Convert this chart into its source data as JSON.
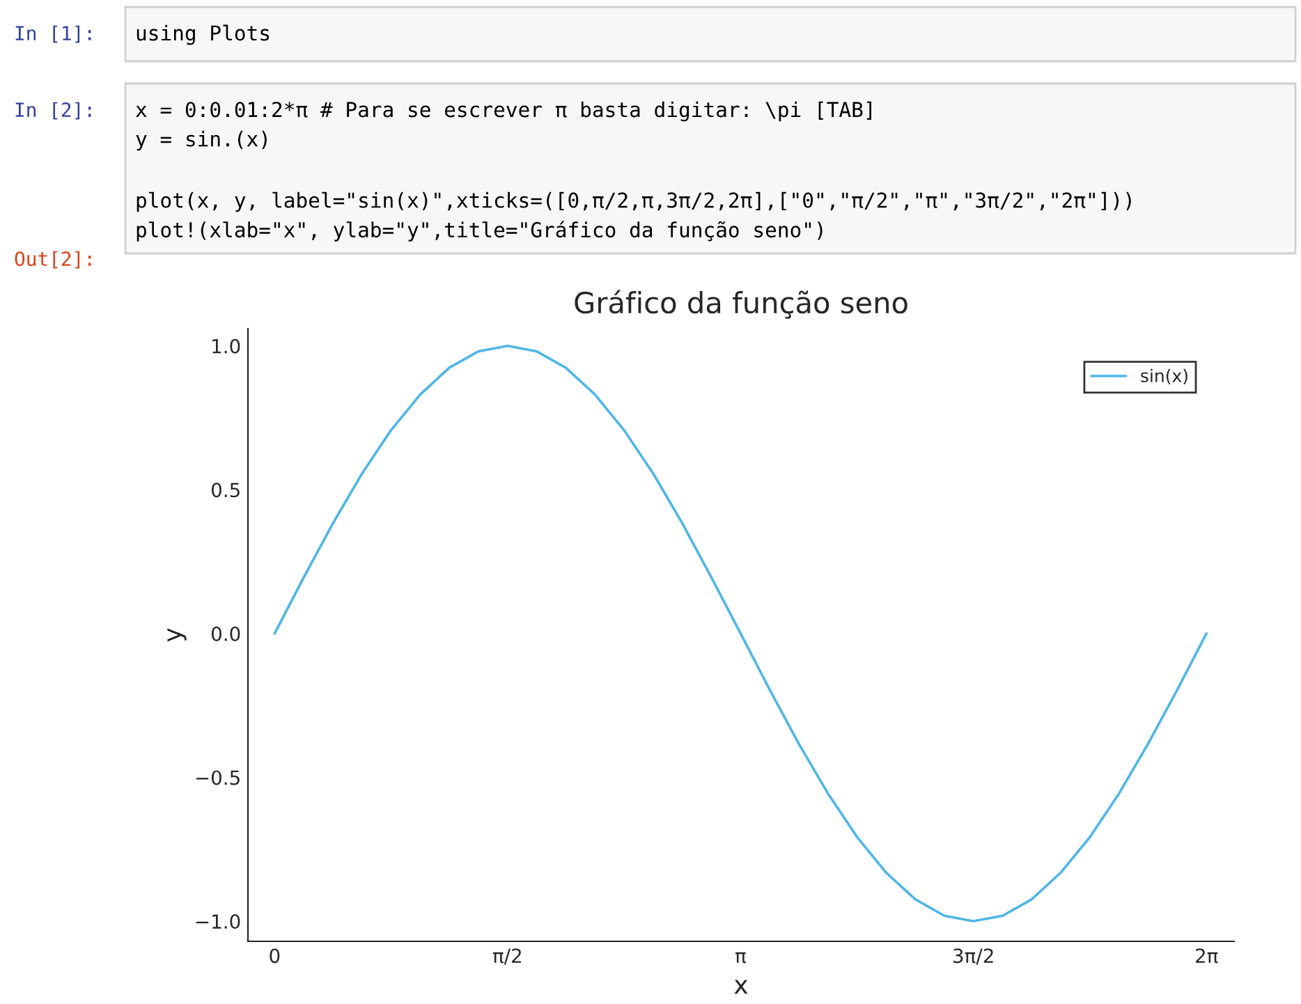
{
  "chart_data": {
    "type": "line",
    "title": "Gráfico da função seno",
    "xlabel": "x",
    "ylabel": "y",
    "x": [
      0,
      0.196,
      0.393,
      0.589,
      0.785,
      0.982,
      1.178,
      1.374,
      1.571,
      1.767,
      1.963,
      2.16,
      2.356,
      2.553,
      2.749,
      2.945,
      3.142,
      3.338,
      3.534,
      3.731,
      3.927,
      4.123,
      4.32,
      4.516,
      4.712,
      4.909,
      5.105,
      5.301,
      5.498,
      5.694,
      5.89,
      6.087,
      6.283
    ],
    "series": [
      {
        "name": "sin(x)",
        "color": "#4fb6e6",
        "values": [
          0,
          0.195,
          0.383,
          0.556,
          0.707,
          0.831,
          0.924,
          0.981,
          1.0,
          0.981,
          0.924,
          0.831,
          0.707,
          0.556,
          0.383,
          0.195,
          0,
          -0.195,
          -0.383,
          -0.556,
          -0.707,
          -0.831,
          -0.924,
          -0.981,
          -1.0,
          -0.981,
          -0.924,
          -0.831,
          -0.707,
          -0.556,
          -0.383,
          -0.195,
          0
        ]
      }
    ],
    "xlim": [
      -0.18,
      6.47
    ],
    "ylim": [
      -1.07,
      1.06
    ],
    "xticks": [
      {
        "value": 0,
        "label": "0"
      },
      {
        "value": 1.571,
        "label": "π/2"
      },
      {
        "value": 3.142,
        "label": "π"
      },
      {
        "value": 4.712,
        "label": "3π/2"
      },
      {
        "value": 6.283,
        "label": "2π"
      }
    ],
    "yticks": [
      {
        "value": -1,
        "label": "−1.0"
      },
      {
        "value": -0.5,
        "label": "−0.5"
      },
      {
        "value": 0,
        "label": "0.0"
      },
      {
        "value": 0.5,
        "label": "0.5"
      },
      {
        "value": 1,
        "label": "1.0"
      }
    ],
    "grid": false,
    "legend": "top right",
    "marker": "none",
    "line_style": "solid",
    "annotations": [
      "In [1]:",
      "using Plots",
      "In [2]:",
      "x = 0:0.01:2*π # Para se escrever π basta digitar: \\pi [TAB]",
      "y = sin.(x)",
      "plot(x, y, label=\"sin(x)\",xticks=([0,π/2,π,3π/2,2π],[\"0\",\"π/2\",\"π\",\"3π/2\",\"2π\"]))",
      "plot!(xlab=\"x\", ylab=\"y\",title=\"Gráfico da função seno\")",
      "Out[2]:"
    ]
  }
}
